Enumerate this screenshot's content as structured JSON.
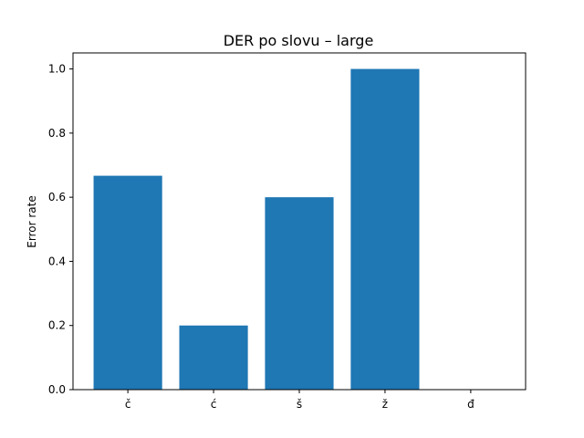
{
  "chart_data": {
    "type": "bar",
    "title": "DER po slovu  –  large",
    "xlabel": "",
    "ylabel": "Error rate",
    "categories": [
      "č",
      "ć",
      "š",
      "ž",
      "đ"
    ],
    "values": [
      0.667,
      0.2,
      0.6,
      1.0,
      0.0
    ],
    "ylim": [
      0,
      1.05
    ],
    "yticks": [
      "0.0",
      "0.2",
      "0.4",
      "0.6",
      "0.8",
      "1.0"
    ],
    "bar_color": "#1f77b4",
    "grid": false,
    "legend": "none"
  }
}
